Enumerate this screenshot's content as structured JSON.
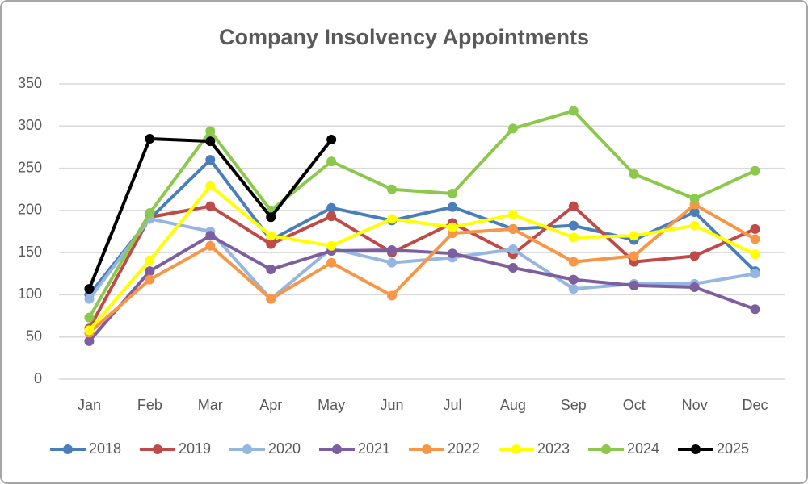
{
  "chart_data": {
    "type": "line",
    "title": "Company Insolvency Appointments",
    "categories": [
      "Jan",
      "Feb",
      "Mar",
      "Apr",
      "May",
      "Jun",
      "Jul",
      "Aug",
      "Sep",
      "Oct",
      "Nov",
      "Dec"
    ],
    "series": [
      {
        "name": "2018",
        "color": "#4a7ebb",
        "values": [
          100,
          190,
          260,
          165,
          203,
          188,
          204,
          178,
          182,
          165,
          198,
          128
        ]
      },
      {
        "name": "2019",
        "color": "#be4b48",
        "values": [
          60,
          192,
          205,
          160,
          193,
          150,
          185,
          148,
          205,
          139,
          146,
          178
        ]
      },
      {
        "name": "2020",
        "color": "#94b6e0",
        "values": [
          95,
          190,
          175,
          95,
          155,
          138,
          144,
          154,
          107,
          113,
          113,
          125
        ]
      },
      {
        "name": "2021",
        "color": "#7d5fa0",
        "values": [
          45,
          128,
          170,
          130,
          152,
          153,
          149,
          132,
          118,
          111,
          109,
          83
        ]
      },
      {
        "name": "2022",
        "color": "#f79646",
        "values": [
          55,
          118,
          158,
          95,
          138,
          99,
          173,
          178,
          139,
          146,
          207,
          166
        ]
      },
      {
        "name": "2023",
        "color": "#ffff00",
        "values": [
          58,
          141,
          229,
          170,
          158,
          190,
          180,
          195,
          168,
          170,
          182,
          148
        ]
      },
      {
        "name": "2024",
        "color": "#8cc84b",
        "values": [
          73,
          197,
          294,
          200,
          258,
          225,
          220,
          297,
          318,
          243,
          214,
          247
        ]
      },
      {
        "name": "2025",
        "color": "#000000",
        "values": [
          107,
          285,
          282,
          192,
          284,
          null,
          null,
          null,
          null,
          null,
          null,
          null
        ]
      }
    ],
    "ylim": [
      0,
      350
    ],
    "yticks": [
      0,
      50,
      100,
      150,
      200,
      250,
      300,
      350
    ],
    "grid": true,
    "legend": "bottom"
  }
}
